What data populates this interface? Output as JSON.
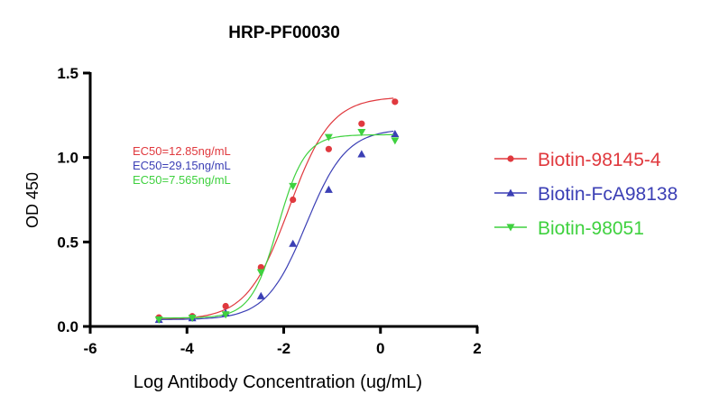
{
  "chart_data": {
    "type": "scatter",
    "title": "HRP-PF00030",
    "xlabel": "Log Antibody Concentration  (ug/mL)",
    "ylabel": "OD 450",
    "xlim": [
      -6,
      2
    ],
    "ylim": [
      0,
      1.5
    ],
    "xticks": [
      "-6",
      "-4",
      "-2",
      "0",
      "2"
    ],
    "yticks": [
      "0.0",
      "0.5",
      "1.0",
      "1.5"
    ],
    "grid": false,
    "legend_position": "right",
    "x": [
      -4.58,
      -3.89,
      -3.2,
      -2.47,
      -1.81,
      -1.07,
      -0.39,
      0.3
    ],
    "series": [
      {
        "name": "Biotin-98145-4",
        "color": "#e0393e",
        "marker": "circle",
        "values": [
          0.053,
          0.06,
          0.12,
          0.35,
          0.75,
          1.05,
          1.2,
          1.33
        ],
        "fit": {
          "bottom": 0.04,
          "top": 1.36,
          "logEC50": -1.89,
          "hill": 1.0
        },
        "annotation": "EC50=12.85ng/mL"
      },
      {
        "name": "Biotin-FcA98138",
        "color": "#3b3fb5",
        "marker": "triangle-up",
        "values": [
          0.04,
          0.05,
          0.08,
          0.18,
          0.49,
          0.81,
          1.02,
          1.14
        ],
        "fit": {
          "bottom": 0.04,
          "top": 1.17,
          "logEC50": -1.535,
          "hill": 1.05
        },
        "annotation": "EC50=29.15ng/mL"
      },
      {
        "name": "Biotin-98051",
        "color": "#3fd13f",
        "marker": "triangle-down",
        "values": [
          0.04,
          0.05,
          0.07,
          0.32,
          0.83,
          1.12,
          1.15,
          1.1
        ],
        "fit": {
          "bottom": 0.05,
          "top": 1.135,
          "logEC50": -2.12,
          "hill": 1.55
        },
        "annotation": "EC50=7.565ng/mL"
      }
    ]
  }
}
